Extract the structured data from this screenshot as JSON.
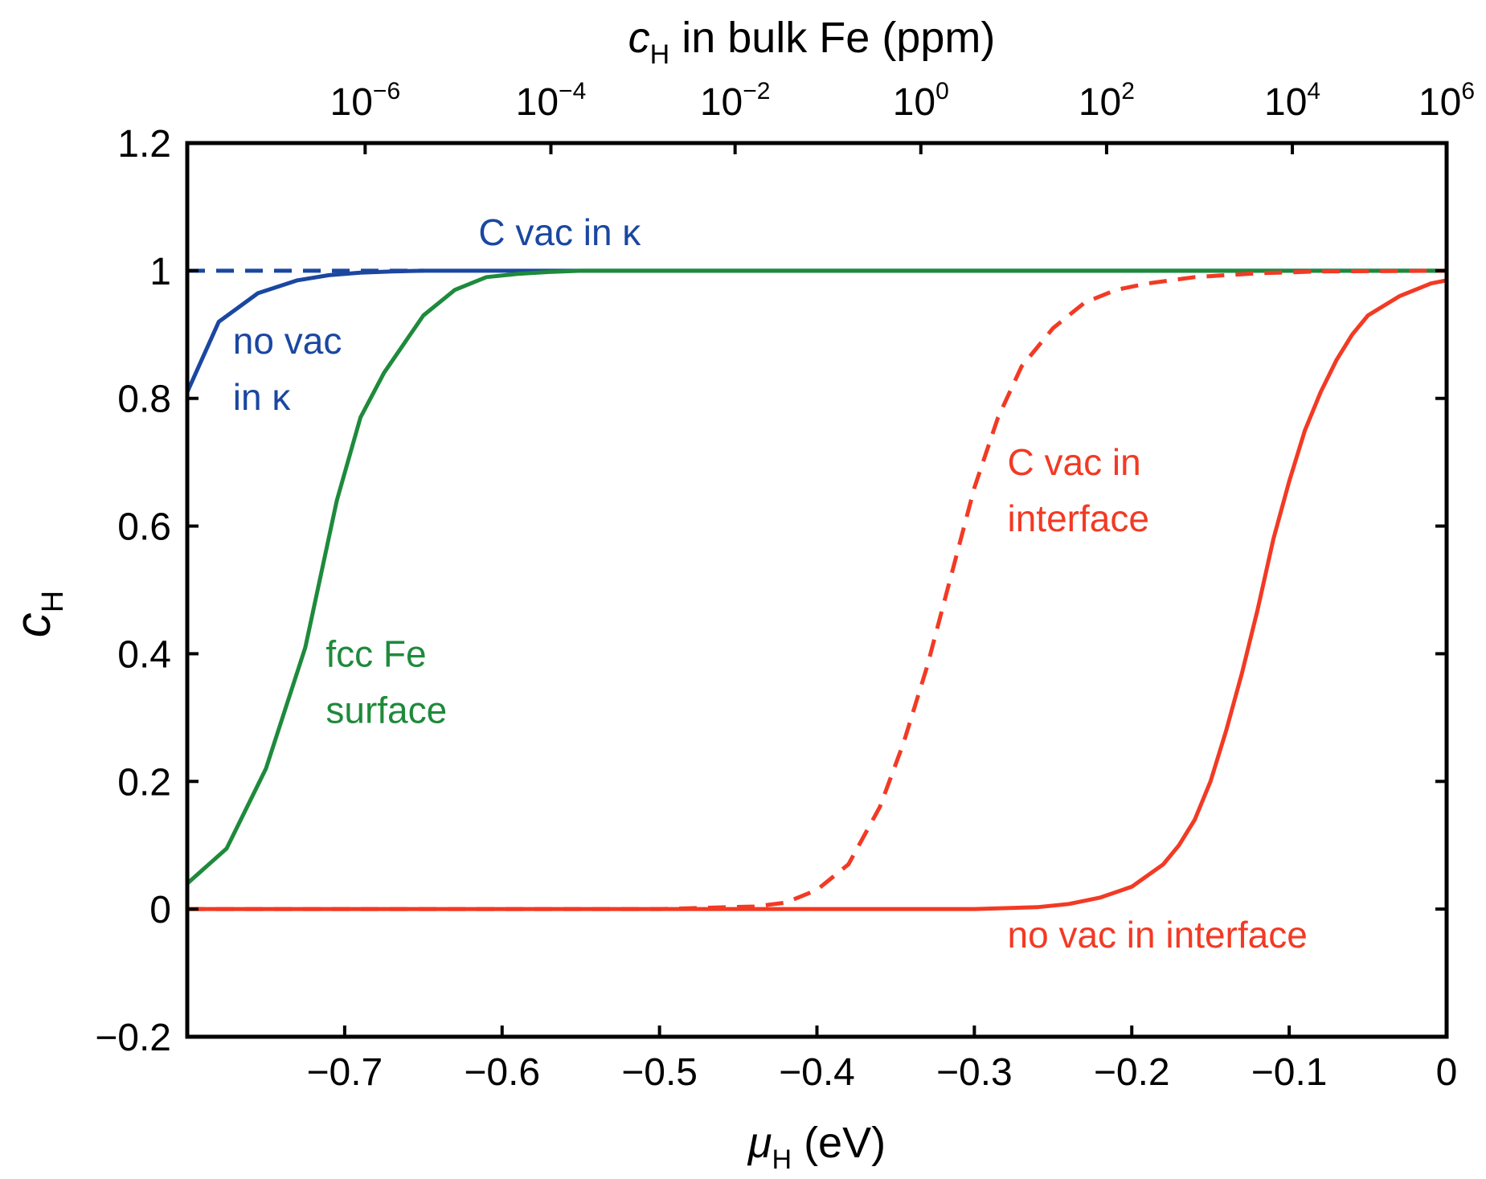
{
  "chart_data": {
    "type": "line",
    "xlabel": {
      "symbol": "μ",
      "subscript": "H",
      "unit": "(eV)"
    },
    "ylabel": {
      "symbol": "c",
      "subscript": "H"
    },
    "top_xlabel": {
      "symbol": "c",
      "subscript": "H",
      "rest": "in bulk Fe (ppm)"
    },
    "xlim": [
      -0.8,
      0
    ],
    "ylim": [
      -0.2,
      1.2
    ],
    "x_ticks": [
      -0.7,
      -0.6,
      -0.5,
      -0.4,
      -0.3,
      -0.2,
      -0.1,
      0
    ],
    "x_tick_labels": [
      "−0.7",
      "−0.6",
      "−0.5",
      "−0.4",
      "−0.3",
      "−0.2",
      "−0.1",
      "0"
    ],
    "y_ticks": [
      -0.2,
      0,
      0.2,
      0.4,
      0.6,
      0.8,
      1,
      1.2
    ],
    "y_tick_labels": [
      "−0.2",
      "0",
      "0.2",
      "0.4",
      "0.6",
      "0.8",
      "1",
      "1.2"
    ],
    "top_ticks": [
      {
        "mu": -0.687,
        "base": "10",
        "exp": "−6"
      },
      {
        "mu": -0.569,
        "base": "10",
        "exp": "−4"
      },
      {
        "mu": -0.452,
        "base": "10",
        "exp": "−2"
      },
      {
        "mu": -0.334,
        "base": "10",
        "exp": "0"
      },
      {
        "mu": -0.216,
        "base": "10",
        "exp": "2"
      },
      {
        "mu": -0.098,
        "base": "10",
        "exp": "4"
      },
      {
        "mu": 0.0,
        "base": "10",
        "exp": "6"
      }
    ],
    "grid": false,
    "series": [
      {
        "name": "no vac in κ",
        "color": "#1a47a0",
        "dash": "solid",
        "x": [
          -0.8,
          -0.78,
          -0.755,
          -0.73,
          -0.71,
          -0.69,
          -0.67,
          -0.65,
          -0.6,
          -0.55,
          0
        ],
        "y": [
          0.81,
          0.92,
          0.965,
          0.985,
          0.993,
          0.997,
          0.999,
          1.0,
          1.0,
          1.0,
          1.0
        ]
      },
      {
        "name": "C vac in κ",
        "color": "#1a47a0",
        "dash": "dashed",
        "x": [
          -0.8,
          -0.65
        ],
        "y": [
          1.0,
          1.0
        ]
      },
      {
        "name": "fcc Fe surface",
        "color": "#1e8a3c",
        "dash": "solid",
        "x": [
          -0.8,
          -0.775,
          -0.75,
          -0.725,
          -0.705,
          -0.69,
          -0.675,
          -0.65,
          -0.63,
          -0.61,
          -0.59,
          -0.57,
          -0.55,
          0
        ],
        "y": [
          0.04,
          0.095,
          0.22,
          0.41,
          0.64,
          0.77,
          0.84,
          0.93,
          0.97,
          0.99,
          0.995,
          0.998,
          1.0,
          1.0
        ]
      },
      {
        "name": "C vac in interface",
        "color": "#f23a24",
        "dash": "dashed",
        "x": [
          -0.8,
          -0.5,
          -0.44,
          -0.42,
          -0.4,
          -0.38,
          -0.36,
          -0.345,
          -0.33,
          -0.315,
          -0.3,
          -0.285,
          -0.27,
          -0.25,
          -0.23,
          -0.21,
          -0.19,
          -0.16,
          -0.12,
          -0.08,
          0
        ],
        "y": [
          0.0,
          0.0,
          0.004,
          0.01,
          0.03,
          0.07,
          0.16,
          0.26,
          0.38,
          0.52,
          0.66,
          0.77,
          0.85,
          0.91,
          0.95,
          0.97,
          0.98,
          0.99,
          0.996,
          0.999,
          1.0
        ]
      },
      {
        "name": "no vac in interface",
        "color": "#f23a24",
        "dash": "solid",
        "x": [
          -0.8,
          -0.3,
          -0.26,
          -0.24,
          -0.22,
          -0.2,
          -0.18,
          -0.17,
          -0.16,
          -0.15,
          -0.14,
          -0.13,
          -0.12,
          -0.11,
          -0.1,
          -0.09,
          -0.08,
          -0.07,
          -0.06,
          -0.05,
          -0.03,
          -0.01,
          0
        ],
        "y": [
          0.0,
          0.0,
          0.003,
          0.008,
          0.018,
          0.035,
          0.07,
          0.1,
          0.14,
          0.2,
          0.28,
          0.37,
          0.47,
          0.58,
          0.67,
          0.75,
          0.81,
          0.86,
          0.9,
          0.93,
          0.96,
          0.98,
          0.985
        ]
      }
    ],
    "annotations": [
      {
        "lines": [
          "C vac in κ"
        ],
        "color": "#1a47a0",
        "at": [
          -0.615,
          1.04
        ]
      },
      {
        "lines": [
          "no vac",
          "in κ"
        ],
        "color": "#1a47a0",
        "at": [
          -0.771,
          0.87
        ]
      },
      {
        "lines": [
          "fcc Fe",
          "surface"
        ],
        "color": "#1e8a3c",
        "at": [
          -0.712,
          0.38
        ]
      },
      {
        "lines": [
          "C vac in",
          "interface"
        ],
        "color": "#f23a24",
        "at": [
          -0.279,
          0.68
        ]
      },
      {
        "lines": [
          "no vac in interface"
        ],
        "color": "#f23a24",
        "at": [
          -0.279,
          -0.06
        ]
      }
    ]
  }
}
